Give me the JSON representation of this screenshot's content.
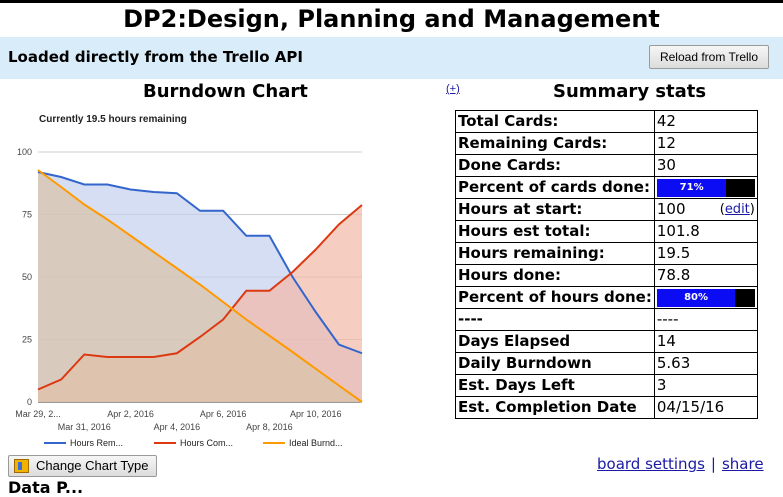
{
  "page": {
    "title": "DP2:Design, Planning and Management",
    "banner_text": "Loaded directly from the Trello API",
    "reload_label": "Reload from Trello",
    "burndown_title": "Burndown Chart",
    "expand_label": "(+)",
    "summary_title": "Summary stats",
    "change_chart_label": "Change Chart Type",
    "board_settings_label": "board settings",
    "separator": "|",
    "share_label": "share",
    "cut_heading": "Data P..."
  },
  "stats": [
    {
      "key": "Total Cards:",
      "value": "42"
    },
    {
      "key": "Remaining Cards:",
      "value": "12"
    },
    {
      "key": "Done Cards:",
      "value": "30"
    },
    {
      "key": "Percent of cards done:",
      "percent": 0.71,
      "percent_label": "71%"
    },
    {
      "key": "Hours at start:",
      "value": "100",
      "edit_label": "edit"
    },
    {
      "key": "Hours est total:",
      "value": "101.8"
    },
    {
      "key": "Hours remaining:",
      "value": "19.5"
    },
    {
      "key": "Hours done:",
      "value": "78.8"
    },
    {
      "key": "Percent of hours done:",
      "percent": 0.8,
      "percent_label": "80%"
    },
    {
      "key": "----",
      "value": "----"
    },
    {
      "key": "Days Elapsed",
      "value": "14"
    },
    {
      "key": "Daily Burndown",
      "value": "5.63"
    },
    {
      "key": "Est. Days Left",
      "value": "3"
    },
    {
      "key": "Est. Completion Date",
      "value": "04/15/16"
    }
  ],
  "chart_data": {
    "type": "area",
    "title": "Currently 19.5 hours remaining",
    "ylim": [
      0,
      100
    ],
    "yticks": [
      "0",
      "25",
      "50",
      "75",
      "100"
    ],
    "x_tick_labels_row1": [
      "Mar 29, 2...",
      "Apr 2, 2016",
      "Apr 6, 2016",
      "Apr 10, 2016"
    ],
    "x_tick_labels_row2": [
      "Mar 31, 2016",
      "Apr 4, 2016",
      "Apr 8, 2016"
    ],
    "x": [
      0,
      1,
      2,
      3,
      4,
      5,
      6,
      7,
      8,
      9,
      10,
      11,
      12,
      13,
      14
    ],
    "xlim": [
      0,
      14
    ],
    "series": [
      {
        "name": "Hours Rem...",
        "color": "#3366cc",
        "fill": "#c5d0ee",
        "values": [
          92,
          90,
          87,
          87,
          85,
          84,
          83.5,
          76.5,
          76.5,
          66.5,
          66.5,
          50,
          36,
          23,
          19.5
        ]
      },
      {
        "name": "Hours Com...",
        "color": "#dc3912",
        "fill": "#f2b8a6",
        "values": [
          5,
          9,
          19,
          18,
          18,
          18,
          19.5,
          26,
          33,
          44.5,
          44.5,
          52,
          61,
          71,
          78.8
        ]
      },
      {
        "name": "Ideal Burnd...",
        "color": "#ff9900",
        "fill": "#d8c3a6",
        "values": [
          92.8,
          86,
          79,
          73,
          66.5,
          60,
          53.5,
          47,
          40,
          33,
          26.5,
          20,
          13.3,
          6.6,
          0
        ]
      }
    ],
    "legend_position": "bottom"
  }
}
